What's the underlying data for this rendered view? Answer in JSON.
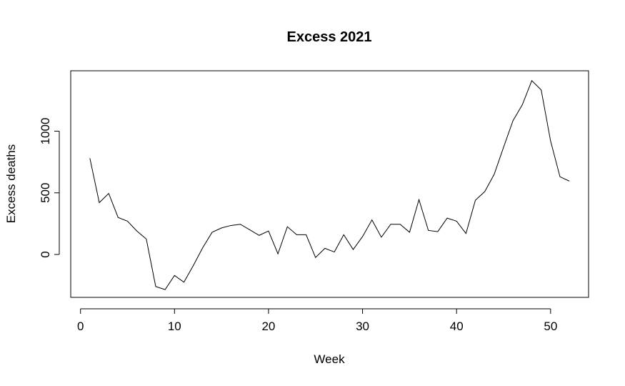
{
  "chart_data": {
    "type": "line",
    "title": "Excess 2021",
    "xlabel": "Week",
    "ylabel": "Excess deaths",
    "xlim": [
      -1.04,
      54.04
    ],
    "ylim": [
      -348,
      1490
    ],
    "xticks": [
      0,
      10,
      20,
      30,
      40,
      50
    ],
    "yticks": [
      0,
      500,
      1000
    ],
    "grid": false,
    "legend": "none",
    "color": "#000000",
    "series": [
      {
        "x": [
          1,
          2,
          3,
          4,
          5,
          6,
          7,
          8,
          9,
          10,
          11,
          12,
          13,
          14,
          15,
          16,
          17,
          18,
          19,
          20,
          21,
          22,
          23,
          24,
          25,
          26,
          27,
          28,
          29,
          30,
          31,
          32,
          33,
          34,
          35,
          36,
          37,
          38,
          39,
          40,
          41,
          42,
          43,
          44,
          45,
          46,
          47,
          48,
          49,
          50,
          51,
          52
        ],
        "values": [
          780,
          420,
          495,
          300,
          270,
          190,
          125,
          -260,
          -285,
          -170,
          -225,
          -90,
          55,
          180,
          215,
          235,
          245,
          200,
          155,
          190,
          5,
          225,
          160,
          160,
          -25,
          50,
          20,
          160,
          40,
          145,
          280,
          140,
          245,
          245,
          180,
          445,
          195,
          185,
          295,
          270,
          170,
          440,
          510,
          650,
          870,
          1085,
          1215,
          1410,
          1335,
          920,
          630,
          595
        ]
      }
    ]
  }
}
